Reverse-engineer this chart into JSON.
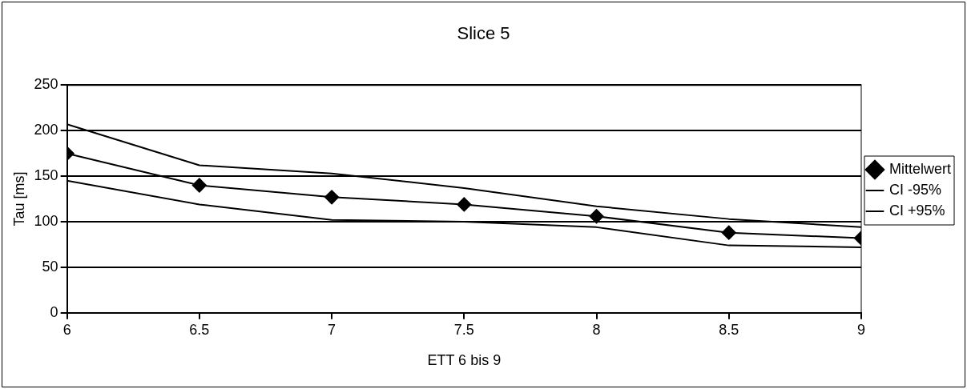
{
  "chart_data": {
    "type": "line",
    "title": "Slice 5",
    "xlabel": "ETT 6 bis 9",
    "ylabel": "Tau [ms]",
    "x": [
      6,
      6.5,
      7,
      7.5,
      8,
      8.5,
      9
    ],
    "series": [
      {
        "name": "Mittelwert",
        "color": "#000000",
        "marker": "diamond",
        "values": [
          175,
          140,
          127,
          119,
          106,
          88,
          82
        ]
      },
      {
        "name": "CI -95%",
        "color": "#000000",
        "marker": "none",
        "values": [
          145,
          119,
          102,
          100,
          94,
          74,
          72
        ]
      },
      {
        "name": "CI +95%",
        "color": "#000000",
        "marker": "none",
        "values": [
          207,
          162,
          153,
          137,
          117,
          103,
          94
        ]
      }
    ],
    "xlim": [
      6,
      9
    ],
    "xticks": [
      6,
      6.5,
      7,
      7.5,
      8,
      8.5,
      9
    ],
    "ylim": [
      0,
      250
    ],
    "yticks": [
      0,
      50,
      100,
      150,
      200,
      250
    ],
    "grid": "y",
    "legend": "right"
  }
}
